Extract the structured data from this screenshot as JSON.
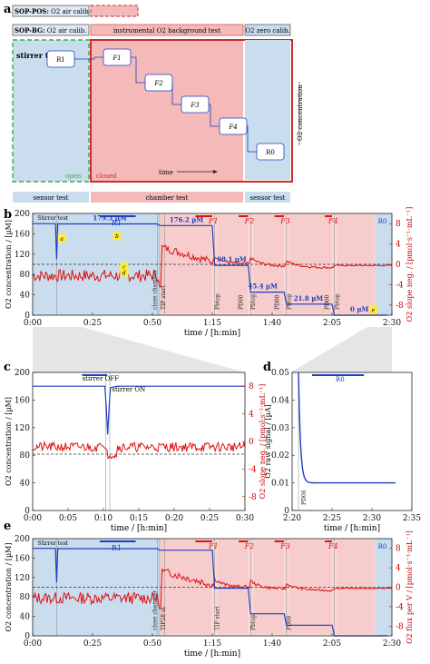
{
  "panel_letters": [
    "a",
    "b",
    "c",
    "d",
    "e"
  ],
  "legend_rows": [
    {
      "bold": "SOP-POS:",
      "text": " O2 air calib."
    },
    {
      "bold": "SOP-BG:",
      "text": " O2 air calib."
    }
  ],
  "phases": {
    "background_test": "instrumental O2 background test",
    "zero_calib": "O2 zero calib.",
    "open": "open",
    "closed": "closed",
    "stirrer_test": "stirrer test",
    "time": "time",
    "o2_concentration": "O2 concentration"
  },
  "schematic_steps": [
    "R1",
    "F1",
    "F2",
    "F3",
    "F4",
    "R0"
  ],
  "test_bar": {
    "sensor_test_left": "sensor test",
    "chamber_test": "chamber test",
    "sensor_test_right": "sensor test"
  },
  "colors": {
    "blue": "#1f3fbf",
    "red": "#e01010",
    "light_blue": "#c9ddef",
    "light_red": "#f4b9b9",
    "dark_red": "#d02a2a",
    "green_dash": "#3cab4a"
  },
  "chart_data": [
    {
      "panel": "b",
      "type": "line",
      "xlabel": "time / [h:min]",
      "ylabel": "O2 concentration / [µM]",
      "y2label": "O2 slope neg. / [pmol·s⁻¹·mL⁻¹]",
      "x_ticks": [
        "0:00",
        "0:25",
        "0:50",
        "1:15",
        "1:40",
        "2:05",
        "2:30"
      ],
      "y_ticks": [
        "0",
        "40",
        "80",
        "120",
        "160",
        "200"
      ],
      "y2_ticks": [
        "-8",
        "-4",
        "0",
        "4",
        "8"
      ],
      "xlim_min": [
        0,
        150
      ],
      "ylim": [
        0,
        200
      ],
      "y2lim": [
        -9,
        9
      ],
      "series": [
        {
          "name": "O2 concentration",
          "x": [
            0,
            9.5,
            10,
            10.5,
            11,
            52,
            53,
            75,
            76,
            90,
            91,
            105,
            106,
            125,
            126,
            145,
            148
          ],
          "y": [
            180,
            180,
            110,
            180,
            179.5,
            179.5,
            176.2,
            176.2,
            98.1,
            98.1,
            45.4,
            45.4,
            21.8,
            21.8,
            0,
            0,
            0
          ]
        }
      ],
      "value_labels": [
        "179.5 µM",
        "176.2 µM",
        "98.1 µM",
        "45.4 µM",
        "21.8 µM",
        "0 µM"
      ],
      "region_labels": [
        "Stirrer test",
        "R1",
        "F1",
        "F2",
        "F3",
        "F4",
        "R0"
      ],
      "markers": [
        "a",
        "b",
        "c",
        "d",
        "e"
      ],
      "annotations": [
        "close chamber",
        "TIP start",
        "Pbtop",
        "Pbtop",
        "Pbtop",
        "Pbtop",
        "PD00",
        "PD00",
        "PD00",
        "TIP28 in"
      ]
    },
    {
      "panel": "c",
      "type": "line",
      "xlabel": "time / [h:min]",
      "ylabel": "O2 concentration / [µM]",
      "y2label": "O2 slope neg. / [pmol·s⁻¹·mL⁻¹]",
      "x_ticks": [
        "0:00",
        "0:05",
        "0:10",
        "0:15",
        "0:20",
        "0:25",
        "0:30"
      ],
      "y_ticks": [
        "0",
        "40",
        "80",
        "120",
        "160",
        "200"
      ],
      "y2_ticks": [
        "-8",
        "-4",
        "0",
        "4",
        "8"
      ],
      "annotations": [
        "stirrer OFF",
        "stirrer ON"
      ]
    },
    {
      "panel": "d",
      "type": "line",
      "xlabel": "time / [h:min]",
      "ylabel": "O2 raw signal / [µA]",
      "x_ticks": [
        "2:20",
        "2:25",
        "2:30",
        "2:35"
      ],
      "y_ticks": [
        "0",
        "0.01",
        "0.02",
        "0.03",
        "0.04",
        "0.05"
      ],
      "region_labels": [
        "R0"
      ],
      "annotations": [
        "PD00"
      ]
    },
    {
      "panel": "e",
      "type": "line",
      "xlabel": "time / [h:min]",
      "ylabel": "O2 concentration / [µM]",
      "y2label": "O2 flux per V / [pmol·s⁻¹·mL⁻¹]",
      "x_ticks": [
        "0:00",
        "0:25",
        "0:50",
        "1:15",
        "1:40",
        "2:05",
        "2:30"
      ],
      "y_ticks": [
        "0",
        "40",
        "80",
        "120",
        "160",
        "200"
      ],
      "y2_ticks": [
        "-8",
        "-4",
        "0",
        "4",
        "8"
      ],
      "region_labels": [
        "Stirrer test",
        "R1",
        "F1",
        "F2",
        "F3",
        "F4",
        "R0"
      ],
      "annotations": [
        "close chamber",
        "TIP28 in",
        "TIP start",
        "Pbtop",
        "PD00"
      ]
    }
  ]
}
